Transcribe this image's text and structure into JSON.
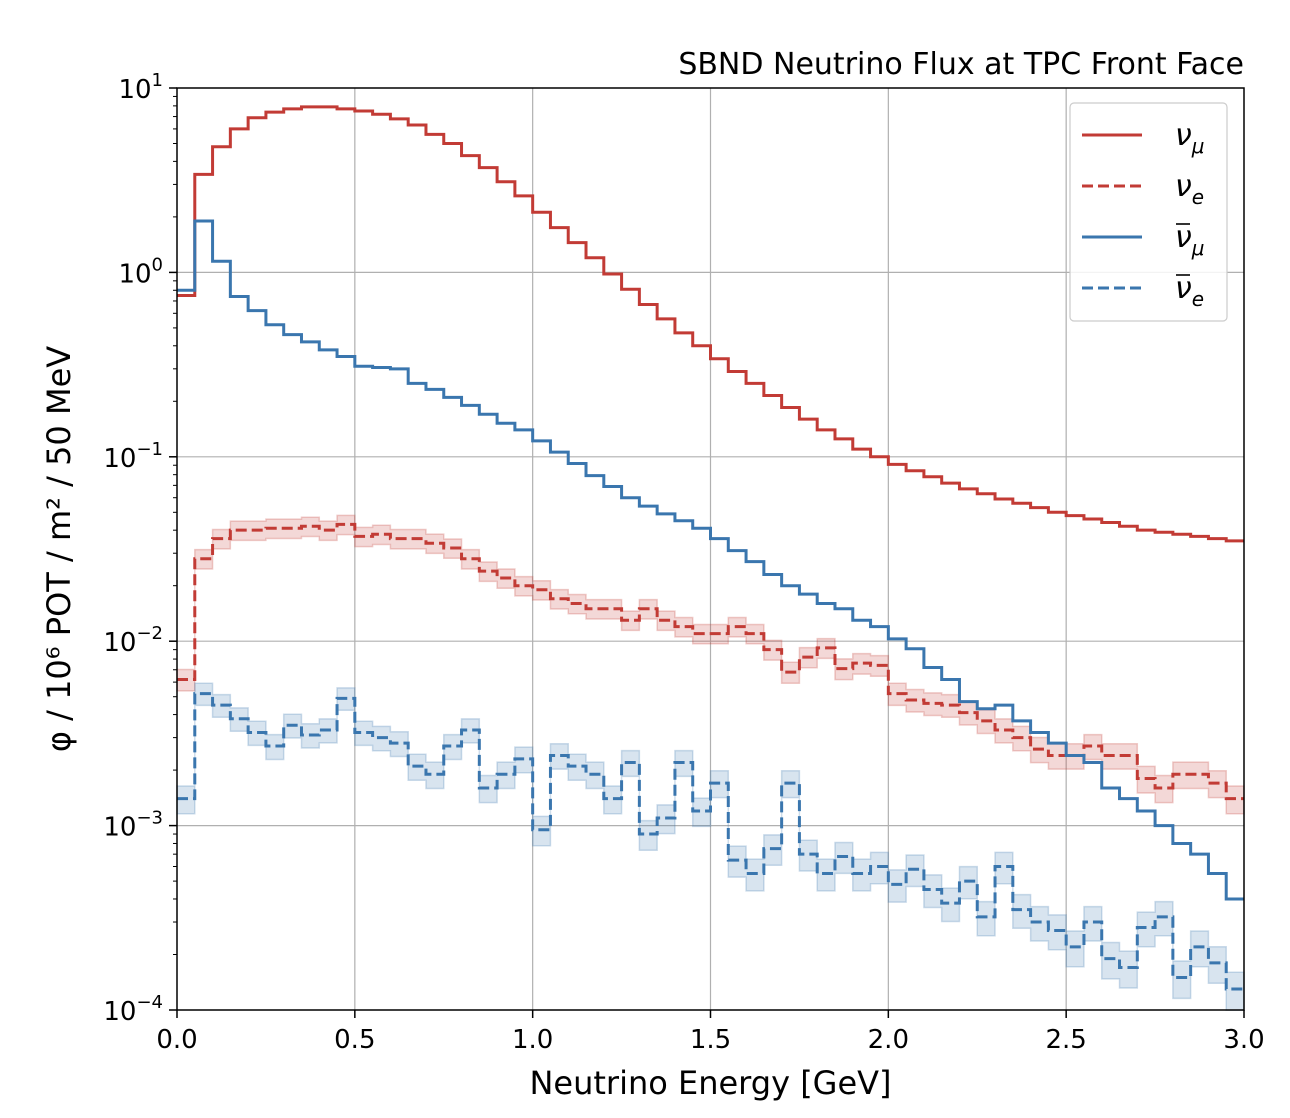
{
  "chart_data": {
    "type": "line",
    "title": "SBND Neutrino Flux at TPC Front Face",
    "xlabel": "Neutrino Energy [GeV]",
    "ylabel": "φ / 10⁶ POT / m² / 50 MeV",
    "xlim": [
      0.0,
      3.0
    ],
    "ylim": [
      0.0001,
      10
    ],
    "yscale": "log",
    "grid": true,
    "legend_position": "top-right",
    "x_ticks": [
      "0.0",
      "0.5",
      "1.0",
      "1.5",
      "2.0",
      "2.5",
      "3.0"
    ],
    "x_tick_values": [
      0.0,
      0.5,
      1.0,
      1.5,
      2.0,
      2.5,
      3.0
    ],
    "y_tick_values": [
      0.0001,
      0.001,
      0.01,
      0.1,
      1,
      10
    ],
    "y_tick_base": "10",
    "y_tick_exponents": [
      "−4",
      "−3",
      "−2",
      "−1",
      "0",
      "1"
    ],
    "bin_edges": [
      0.0,
      0.05,
      0.1,
      0.15,
      0.2,
      0.25,
      0.3,
      0.35,
      0.4,
      0.45,
      0.5,
      0.55,
      0.6,
      0.65,
      0.7,
      0.75,
      0.8,
      0.85,
      0.9,
      0.95,
      1.0,
      1.05,
      1.1,
      1.15,
      1.2,
      1.25,
      1.3,
      1.35,
      1.4,
      1.45,
      1.5,
      1.55,
      1.6,
      1.65,
      1.7,
      1.75,
      1.8,
      1.85,
      1.9,
      1.95,
      2.0,
      2.05,
      2.1,
      2.15,
      2.2,
      2.25,
      2.3,
      2.35,
      2.4,
      2.45,
      2.5,
      2.55,
      2.6,
      2.65,
      2.7,
      2.75,
      2.8,
      2.85,
      2.9,
      2.95,
      3.0
    ],
    "series": [
      {
        "name": "ν_μ",
        "legend_symbol": "ν",
        "legend_sub": "μ",
        "bar": false,
        "color": "#c23b35",
        "style": "solid",
        "band": false,
        "values": [
          0.75,
          3.4,
          4.8,
          6.0,
          6.9,
          7.4,
          7.7,
          7.9,
          7.9,
          7.7,
          7.5,
          7.2,
          6.8,
          6.3,
          5.6,
          5.0,
          4.3,
          3.7,
          3.1,
          2.6,
          2.12,
          1.75,
          1.45,
          1.2,
          0.98,
          0.81,
          0.67,
          0.56,
          0.47,
          0.4,
          0.34,
          0.29,
          0.25,
          0.215,
          0.185,
          0.16,
          0.14,
          0.125,
          0.11,
          0.1,
          0.091,
          0.084,
          0.078,
          0.072,
          0.067,
          0.063,
          0.059,
          0.056,
          0.053,
          0.05,
          0.048,
          0.046,
          0.044,
          0.042,
          0.04,
          0.039,
          0.038,
          0.037,
          0.036,
          0.035
        ]
      },
      {
        "name": "ν_e",
        "legend_symbol": "ν",
        "legend_sub": "e",
        "bar": false,
        "color": "#c23b35",
        "style": "dashed",
        "band": true,
        "values": [
          0.0062,
          0.028,
          0.036,
          0.04,
          0.04,
          0.041,
          0.041,
          0.042,
          0.04,
          0.043,
          0.037,
          0.038,
          0.036,
          0.036,
          0.034,
          0.032,
          0.028,
          0.024,
          0.022,
          0.02,
          0.019,
          0.017,
          0.016,
          0.015,
          0.015,
          0.013,
          0.015,
          0.013,
          0.012,
          0.011,
          0.011,
          0.012,
          0.011,
          0.009,
          0.0068,
          0.0082,
          0.0092,
          0.0071,
          0.0076,
          0.0074,
          0.0052,
          0.0048,
          0.0046,
          0.0045,
          0.0041,
          0.0037,
          0.0033,
          0.003,
          0.0026,
          0.0024,
          0.0024,
          0.0027,
          0.0024,
          0.0024,
          0.0018,
          0.0016,
          0.0019,
          0.0019,
          0.0017,
          0.0014
        ]
      },
      {
        "name": "ν̄_μ",
        "legend_symbol": "ν",
        "legend_sub": "μ",
        "bar": true,
        "color": "#3a76ae",
        "style": "solid",
        "band": false,
        "values": [
          0.8,
          1.9,
          1.15,
          0.74,
          0.62,
          0.52,
          0.46,
          0.42,
          0.38,
          0.35,
          0.31,
          0.305,
          0.3,
          0.25,
          0.232,
          0.21,
          0.19,
          0.17,
          0.152,
          0.14,
          0.122,
          0.106,
          0.092,
          0.079,
          0.069,
          0.06,
          0.054,
          0.049,
          0.045,
          0.041,
          0.036,
          0.031,
          0.027,
          0.023,
          0.02,
          0.018,
          0.016,
          0.015,
          0.013,
          0.012,
          0.0103,
          0.0091,
          0.0072,
          0.0062,
          0.0047,
          0.0043,
          0.0045,
          0.0037,
          0.0032,
          0.0028,
          0.0024,
          0.0022,
          0.0016,
          0.0014,
          0.0012,
          0.001,
          0.0008,
          0.0007,
          0.00055,
          0.0004
        ]
      },
      {
        "name": "ν̄_e",
        "legend_symbol": "ν",
        "legend_sub": "e",
        "bar": true,
        "color": "#3a76ae",
        "style": "dashed",
        "band": true,
        "values": [
          0.0014,
          0.0052,
          0.0045,
          0.0038,
          0.0032,
          0.0027,
          0.0035,
          0.0031,
          0.0033,
          0.0049,
          0.0032,
          0.003,
          0.0028,
          0.0021,
          0.0019,
          0.0027,
          0.0033,
          0.0016,
          0.0019,
          0.0023,
          0.00095,
          0.0024,
          0.0021,
          0.0019,
          0.0014,
          0.0022,
          0.0009,
          0.0011,
          0.0022,
          0.0012,
          0.0017,
          0.00065,
          0.00055,
          0.00075,
          0.0017,
          0.0007,
          0.00055,
          0.00068,
          0.00055,
          0.0006,
          0.00048,
          0.00058,
          0.00045,
          0.00038,
          0.0005,
          0.00032,
          0.0006,
          0.00035,
          0.0003,
          0.00027,
          0.00022,
          0.0003,
          0.00019,
          0.00017,
          0.00028,
          0.00032,
          0.00015,
          0.00022,
          0.00018,
          0.00013
        ]
      }
    ]
  }
}
